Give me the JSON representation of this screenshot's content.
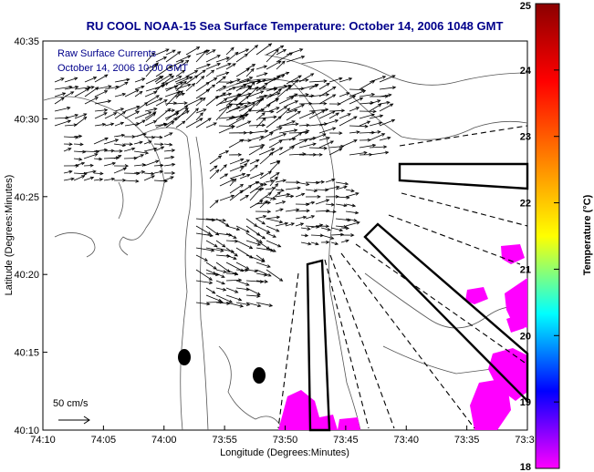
{
  "figure": {
    "title": "RU COOL  NOAA-15  Sea Surface Temperature:  October 14, 2006 1048 GMT",
    "overlay_title": "Raw Surface Currents",
    "overlay_time": "October 14, 2006 10:00 GMT",
    "scale_label": "50 cm/s",
    "xlabel": "Longitude (Degrees:Minutes)",
    "ylabel": "Latitude (Degrees:Minutes)",
    "colorbar_label": "Temperature (°C)"
  },
  "chart_data": {
    "type": "map",
    "x_ticks": [
      "74:10",
      "74:05",
      "74:00",
      "73:55",
      "73:50",
      "73:45",
      "73:40",
      "73:35",
      "73:3"
    ],
    "y_ticks": [
      "40:35",
      "40:30",
      "40:25",
      "40:20",
      "40:15",
      "40:10"
    ],
    "colorbar": {
      "min": 18,
      "max": 25,
      "ticks": [
        "25",
        "24",
        "23",
        "22",
        "21",
        "20",
        "19",
        "18"
      ],
      "colors": [
        "#8b0000",
        "#ff0000",
        "#ff8000",
        "#ffff00",
        "#00ffff",
        "#0000ff",
        "#ff00ff"
      ]
    },
    "sst_patch_color": "#ff00ff",
    "buoy_color": "#000000"
  }
}
